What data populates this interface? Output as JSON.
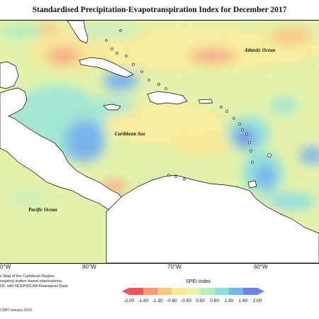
{
  "title": "Standardised Precipitation-Evapotranspiration Index for December 2017",
  "map": {
    "labels": {
      "atlantic": "Atlantic Ocean",
      "caribbean": "Caribbean Sea",
      "pacific": "Pacific Ocean"
    },
    "longitude_labels": [
      "0°W",
      "80°W",
      "70°W",
      "60°W"
    ]
  },
  "credit": {
    "lines": [
      "n Map of the Caribbean Region.",
      "regating station based observations,",
      "DF, with NCEP/NCAR Reanalysis Data."
    ],
    "date": "CIMH January-2018"
  },
  "legend": {
    "title": "SPEI Index",
    "ticks": [
      "-2.00",
      "-1.60",
      "-1.30",
      "-0.80",
      "-0.50",
      "0.50",
      "0.80",
      "1.30",
      "1.60",
      "2.00"
    ],
    "colors": [
      "#e8555a",
      "#f49a7a",
      "#f6c886",
      "#f9ea9a",
      "#e6f5ae",
      "#b8eebd",
      "#8fdede",
      "#7ab4ec",
      "#6f83e6"
    ]
  }
}
